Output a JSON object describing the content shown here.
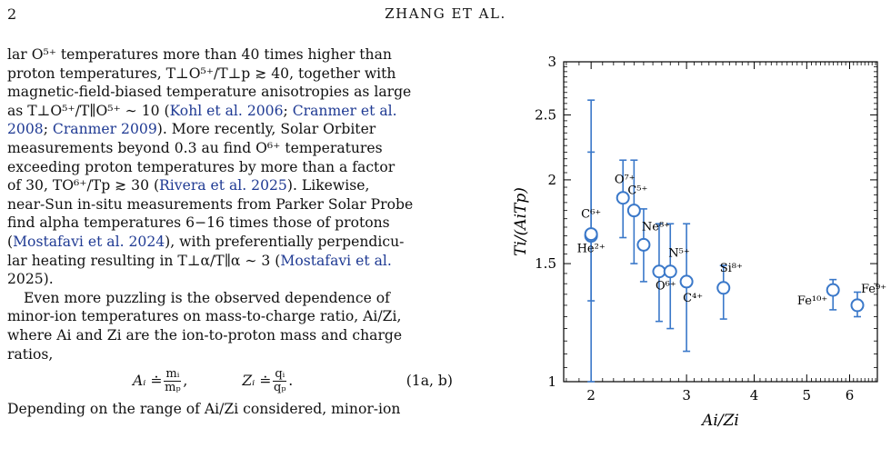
{
  "header": {
    "page_number": "2",
    "running_head": "ZHANG ET AL."
  },
  "body": {
    "lines": [
      "lar O⁵⁺ temperatures more than 40 times higher than",
      "proton temperatures, T⊥O⁵⁺/T⊥p ≳ 40, together with",
      "magnetic-field-biased temperature anisotropies as large",
      "as T⊥O⁵⁺/T∥O⁵⁺ ∼ 10 (",
      "2008; ",
      "measurements beyond 0.3 au find O⁶⁺ temperatures",
      "exceeding proton temperatures by more than a factor",
      "of 30, TO⁶⁺/Tp ≳ 30 (",
      "near-Sun in-situ measurements from Parker Solar Probe",
      "find alpha temperatures 6−16 times those of protons",
      "(",
      "lar heating resulting in T⊥α/T∥α ∼ 3 (",
      "2025).",
      "Even more puzzling is the observed dependence of",
      "minor-ion temperatures on mass-to-charge ratio, Ai/Zi,",
      "where Ai and Zi are the ion-to-proton mass and charge",
      "ratios,",
      "Depending on the range of Ai/Zi considered, minor-ion"
    ],
    "cite_kohl": "Kohl et al. 2006",
    "cite_cranmer08a": "Cranmer et al.",
    "cite_cranmer08b": "2008",
    "cite_cranmer09": "Cranmer 2009",
    "line4_tail": "). More recently, Solar Orbiter",
    "cite_rivera": "Rivera et al. 2025",
    "line8_tail": "). Likewise,",
    "cite_mostafavi24": "Mostafavi et al. 2024",
    "line11_tail": "), with preferentially perpendicu-",
    "cite_mostafavi25a": "Mostafavi et al.",
    "sep_semicolon": "; ",
    "line5_tail": ").",
    "line12_tail": "",
    "equation": {
      "a_lhs": "Aᵢ ≐",
      "a_num": "mᵢ",
      "a_den": "mₚ",
      "z_lhs": "Zᵢ ≐",
      "z_num": "qᵢ",
      "z_den": "qₚ",
      "comma": ",",
      "period": ".",
      "label": "(1a, b)"
    }
  },
  "chart_data": {
    "type": "scatter",
    "xlabel": "Ai/Zi",
    "ylabel": "Ti/(AiTp)",
    "xscale": "log",
    "yscale": "log",
    "xlim": [
      1.78,
      6.75
    ],
    "ylim": [
      1.0,
      3.0
    ],
    "x_ticks": [
      "2",
      "3",
      "4",
      "5",
      "6"
    ],
    "y_ticks": [
      "1",
      "1.5",
      "2",
      "2.5",
      "3"
    ],
    "grid": false,
    "marker_color": "#3a78c9",
    "points": [
      {
        "ion": "He²⁺",
        "x": 2.0,
        "y": 1.65,
        "yerr_low": 1.0,
        "yerr_high": 2.63
      },
      {
        "ion": "C⁶⁺",
        "x": 2.0,
        "y": 1.66,
        "yerr_low": 1.32,
        "yerr_high": 2.2
      },
      {
        "ion": "O⁷⁺",
        "x": 2.29,
        "y": 1.88,
        "yerr_low": 1.64,
        "yerr_high": 2.14
      },
      {
        "ion": "C⁵⁺",
        "x": 2.4,
        "y": 1.8,
        "yerr_low": 1.5,
        "yerr_high": 2.14
      },
      {
        "ion": "Ne⁸⁺",
        "x": 2.5,
        "y": 1.6,
        "yerr_low": 1.41,
        "yerr_high": 1.81
      },
      {
        "ion": "O⁶⁺",
        "x": 2.67,
        "y": 1.46,
        "yerr_low": 1.23,
        "yerr_high": 1.72
      },
      {
        "ion": "N⁵⁺",
        "x": 2.8,
        "y": 1.46,
        "yerr_low": 1.2,
        "yerr_high": 1.72
      },
      {
        "ion": "C⁴⁺",
        "x": 3.0,
        "y": 1.41,
        "yerr_low": 1.11,
        "yerr_high": 1.72
      },
      {
        "ion": "Si⁸⁺",
        "x": 3.51,
        "y": 1.38,
        "yerr_low": 1.24,
        "yerr_high": 1.49
      },
      {
        "ion": "Fe¹⁰⁺",
        "x": 5.59,
        "y": 1.37,
        "yerr_low": 1.28,
        "yerr_high": 1.42
      },
      {
        "ion": "Fe⁹⁺",
        "x": 6.2,
        "y": 1.3,
        "yerr_low": 1.25,
        "yerr_high": 1.36
      }
    ],
    "labels": [
      {
        "text": "O⁷⁺",
        "anchor_ion": "O⁷⁺"
      },
      {
        "text": "C⁵⁺",
        "anchor_ion": "C⁵⁺"
      },
      {
        "text": "C⁶⁺",
        "anchor_ion": "C⁶⁺"
      },
      {
        "text": "He²⁺",
        "anchor_ion": "He²⁺"
      },
      {
        "text": "Ne⁸⁺",
        "anchor_ion": "Ne⁸⁺"
      },
      {
        "text": "N⁵⁺",
        "anchor_ion": "N⁵⁺"
      },
      {
        "text": "O⁶⁺",
        "anchor_ion": "O⁶⁺"
      },
      {
        "text": "C⁴⁺",
        "anchor_ion": "C⁴⁺"
      },
      {
        "text": "Si⁸⁺",
        "anchor_ion": "Si⁸⁺"
      },
      {
        "text": "Fe⁹⁺",
        "anchor_ion": "Fe⁹⁺"
      },
      {
        "text": "Fe¹⁰⁺",
        "anchor_ion": "Fe¹⁰⁺"
      }
    ]
  }
}
